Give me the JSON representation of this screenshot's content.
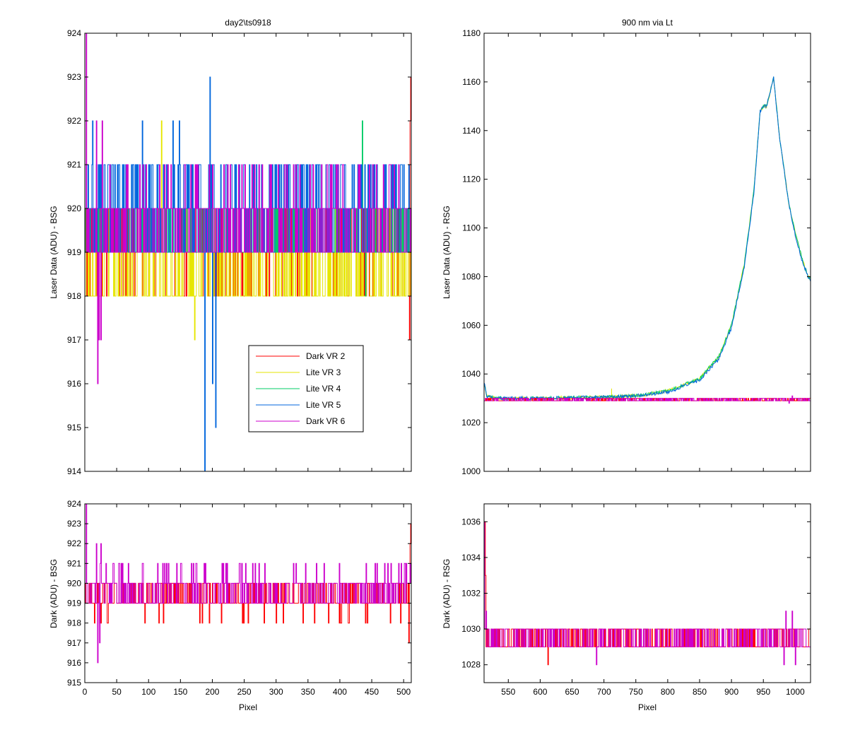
{
  "chart_data": [
    {
      "id": "tl",
      "type": "line",
      "title": "day2\\ts0918",
      "xlabel": "",
      "ylabel": "Laser Data (ADU) - BSG",
      "xlim": [
        0,
        512
      ],
      "ylim": [
        914,
        924
      ],
      "xticks": [
        0,
        50,
        100,
        150,
        200,
        250,
        300,
        350,
        400,
        450,
        500
      ],
      "xtick_labels_shown": false,
      "yticks": [
        914,
        915,
        916,
        917,
        918,
        919,
        920,
        921,
        922,
        923,
        924
      ],
      "legend": {
        "placement": "lower-center",
        "entries": [
          "Dark VR 2",
          "Lite VR 3",
          "Lite VR 4",
          "Lite VR 5",
          "Dark VR 6"
        ]
      },
      "series": [
        {
          "name": "Dark VR 2",
          "color": "#ff0000",
          "style": "noise",
          "levels": [
            918,
            919,
            920
          ],
          "weights": [
            0.15,
            0.6,
            0.25
          ],
          "x_range": [
            0,
            512
          ],
          "spikes": [
            {
              "x": 509,
              "y": 917
            },
            {
              "x": 510,
              "y": 922
            },
            {
              "x": 511,
              "y": 923
            }
          ]
        },
        {
          "name": "Lite VR 3",
          "color": "#e6e600",
          "style": "noise",
          "levels": [
            918,
            919,
            920
          ],
          "weights": [
            0.45,
            0.45,
            0.1
          ],
          "x_range": [
            0,
            512
          ],
          "spikes": [
            {
              "x": 172,
              "y": 917
            },
            {
              "x": 120,
              "y": 922
            }
          ]
        },
        {
          "name": "Lite VR 4",
          "color": "#00cc66",
          "style": "noise",
          "levels": [
            919,
            920
          ],
          "weights": [
            0.55,
            0.45
          ],
          "x_range": [
            0,
            512
          ],
          "spikes": [
            {
              "x": 435,
              "y": 922
            },
            {
              "x": 440,
              "y": 918
            }
          ]
        },
        {
          "name": "Lite VR 5",
          "color": "#0066dd",
          "style": "noise",
          "levels": [
            919,
            920,
            921
          ],
          "weights": [
            0.4,
            0.3,
            0.3
          ],
          "x_range": [
            0,
            512
          ],
          "spikes": [
            {
              "x": 188,
              "y": 914
            },
            {
              "x": 196,
              "y": 923
            },
            {
              "x": 200,
              "y": 916
            },
            {
              "x": 205,
              "y": 915
            },
            {
              "x": 12,
              "y": 922
            },
            {
              "x": 90,
              "y": 922
            },
            {
              "x": 138,
              "y": 922
            },
            {
              "x": 148,
              "y": 922
            }
          ]
        },
        {
          "name": "Dark VR 6",
          "color": "#cc00cc",
          "style": "noise",
          "levels": [
            919,
            920,
            921
          ],
          "weights": [
            0.45,
            0.45,
            0.1
          ],
          "x_range": [
            0,
            512
          ],
          "spikes": [
            {
              "x": 2,
              "y": 924
            },
            {
              "x": 20,
              "y": 916
            },
            {
              "x": 22,
              "y": 917
            },
            {
              "x": 25,
              "y": 917
            },
            {
              "x": 18,
              "y": 922
            },
            {
              "x": 27,
              "y": 922
            }
          ]
        }
      ]
    },
    {
      "id": "tr",
      "type": "line",
      "title": "900 nm via Lt",
      "xlabel": "",
      "ylabel": "Laser Data (ADU) - RSG",
      "xlim": [
        512,
        1024
      ],
      "ylim": [
        1000,
        1180
      ],
      "xticks": [
        550,
        600,
        650,
        700,
        750,
        800,
        850,
        900,
        950,
        1000
      ],
      "xtick_labels_shown": false,
      "yticks": [
        1000,
        1020,
        1040,
        1060,
        1080,
        1100,
        1120,
        1140,
        1160,
        1180
      ],
      "series": [
        {
          "name": "Lite VR 3",
          "color": "#e6e600",
          "style": "curve",
          "points": [
            [
              512,
              1037
            ],
            [
              516,
              1031
            ],
            [
              530,
              1030
            ],
            [
              600,
              1030
            ],
            [
              700,
              1030.5
            ],
            [
              750,
              1031
            ],
            [
              800,
              1033
            ],
            [
              850,
              1038
            ],
            [
              880,
              1047
            ],
            [
              900,
              1060
            ],
            [
              920,
              1085
            ],
            [
              935,
              1115
            ],
            [
              945,
              1148
            ],
            [
              950,
              1150
            ],
            [
              955,
              1150
            ],
            [
              960,
              1155
            ],
            [
              966,
              1162
            ],
            [
              975,
              1138
            ],
            [
              990,
              1110
            ],
            [
              1000,
              1098
            ],
            [
              1010,
              1088
            ],
            [
              1020,
              1080
            ],
            [
              1024,
              1079
            ]
          ],
          "spikes": [
            {
              "x": 712,
              "y": 1034
            }
          ]
        },
        {
          "name": "Lite VR 4",
          "color": "#00cc66",
          "style": "curve",
          "points": [
            [
              512,
              1037
            ],
            [
              516,
              1031
            ],
            [
              530,
              1030
            ],
            [
              600,
              1030
            ],
            [
              700,
              1030.5
            ],
            [
              750,
              1031
            ],
            [
              800,
              1033
            ],
            [
              850,
              1038
            ],
            [
              880,
              1047
            ],
            [
              900,
              1060
            ],
            [
              920,
              1085
            ],
            [
              935,
              1115
            ],
            [
              945,
              1148
            ],
            [
              950,
              1150
            ],
            [
              955,
              1150
            ],
            [
              960,
              1155
            ],
            [
              966,
              1162
            ],
            [
              975,
              1138
            ],
            [
              990,
              1110
            ],
            [
              1000,
              1098
            ],
            [
              1010,
              1088
            ],
            [
              1020,
              1080
            ],
            [
              1024,
              1079
            ]
          ]
        },
        {
          "name": "Lite VR 5",
          "color": "#0066dd",
          "style": "curve",
          "points": [
            [
              512,
              1037
            ],
            [
              516,
              1031
            ],
            [
              530,
              1030
            ],
            [
              600,
              1030
            ],
            [
              700,
              1030.5
            ],
            [
              750,
              1031
            ],
            [
              800,
              1032.5
            ],
            [
              850,
              1037.5
            ],
            [
              880,
              1046
            ],
            [
              900,
              1059
            ],
            [
              920,
              1084
            ],
            [
              935,
              1114
            ],
            [
              945,
              1148
            ],
            [
              950,
              1150
            ],
            [
              955,
              1150
            ],
            [
              960,
              1155
            ],
            [
              966,
              1162
            ],
            [
              975,
              1138
            ],
            [
              990,
              1110
            ],
            [
              1000,
              1097
            ],
            [
              1010,
              1087
            ],
            [
              1020,
              1080
            ],
            [
              1024,
              1078
            ]
          ]
        },
        {
          "name": "Dark VR 2",
          "color": "#ff0000",
          "style": "noise",
          "levels": [
            1029,
            1030
          ],
          "weights": [
            0.5,
            0.5
          ],
          "x_range": [
            512,
            1024
          ]
        },
        {
          "name": "Dark VR 6",
          "color": "#cc00cc",
          "style": "noise",
          "levels": [
            1029,
            1030
          ],
          "weights": [
            0.5,
            0.5
          ],
          "x_range": [
            512,
            1024
          ],
          "spikes": [
            {
              "x": 990,
              "y": 1028
            },
            {
              "x": 995,
              "y": 1031
            }
          ]
        }
      ]
    },
    {
      "id": "bl",
      "type": "line",
      "title": "",
      "xlabel": "Pixel",
      "ylabel": "Dark (ADU) - BSG",
      "xlim": [
        0,
        512
      ],
      "ylim": [
        915,
        924
      ],
      "xticks": [
        0,
        50,
        100,
        150,
        200,
        250,
        300,
        350,
        400,
        450,
        500
      ],
      "xtick_labels_shown": true,
      "yticks": [
        915,
        916,
        917,
        918,
        919,
        920,
        921,
        922,
        923,
        924
      ],
      "series": [
        {
          "name": "Dark VR 2",
          "color": "#ff0000",
          "style": "noise",
          "levels": [
            918,
            919,
            920
          ],
          "weights": [
            0.05,
            0.6,
            0.35
          ],
          "x_range": [
            0,
            512
          ],
          "spikes": [
            {
              "x": 508,
              "y": 917
            },
            {
              "x": 510,
              "y": 922
            },
            {
              "x": 511,
              "y": 923
            }
          ]
        },
        {
          "name": "Dark VR 6",
          "color": "#cc00cc",
          "style": "noise",
          "levels": [
            919,
            920,
            921
          ],
          "weights": [
            0.45,
            0.45,
            0.1
          ],
          "x_range": [
            0,
            512
          ],
          "spikes": [
            {
              "x": 2,
              "y": 924
            },
            {
              "x": 20,
              "y": 916
            },
            {
              "x": 23,
              "y": 917
            },
            {
              "x": 18,
              "y": 922
            },
            {
              "x": 25,
              "y": 922
            }
          ]
        }
      ]
    },
    {
      "id": "br",
      "type": "line",
      "title": "",
      "xlabel": "Pixel",
      "ylabel": "Dark (ADU) - RSG",
      "xlim": [
        512,
        1024
      ],
      "ylim": [
        1027,
        1037
      ],
      "xticks": [
        550,
        600,
        650,
        700,
        750,
        800,
        850,
        900,
        950,
        1000
      ],
      "xtick_labels_shown": true,
      "yticks": [
        1028,
        1030,
        1032,
        1034,
        1036
      ],
      "series": [
        {
          "name": "Dark VR 2",
          "color": "#ff0000",
          "style": "noise",
          "levels": [
            1029,
            1030
          ],
          "weights": [
            0.5,
            0.5
          ],
          "x_range": [
            512,
            1024
          ],
          "spikes": [
            {
              "x": 612,
              "y": 1028
            },
            {
              "x": 513,
              "y": 1036
            },
            {
              "x": 514,
              "y": 1033
            }
          ]
        },
        {
          "name": "Dark VR 6",
          "color": "#cc00cc",
          "style": "noise",
          "levels": [
            1029,
            1030
          ],
          "weights": [
            0.5,
            0.5
          ],
          "x_range": [
            512,
            1024
          ],
          "spikes": [
            {
              "x": 512,
              "y": 1036
            },
            {
              "x": 515,
              "y": 1031
            },
            {
              "x": 688,
              "y": 1028
            },
            {
              "x": 982,
              "y": 1028
            },
            {
              "x": 985,
              "y": 1031
            },
            {
              "x": 995,
              "y": 1031
            },
            {
              "x": 1000,
              "y": 1028
            }
          ]
        }
      ]
    }
  ]
}
